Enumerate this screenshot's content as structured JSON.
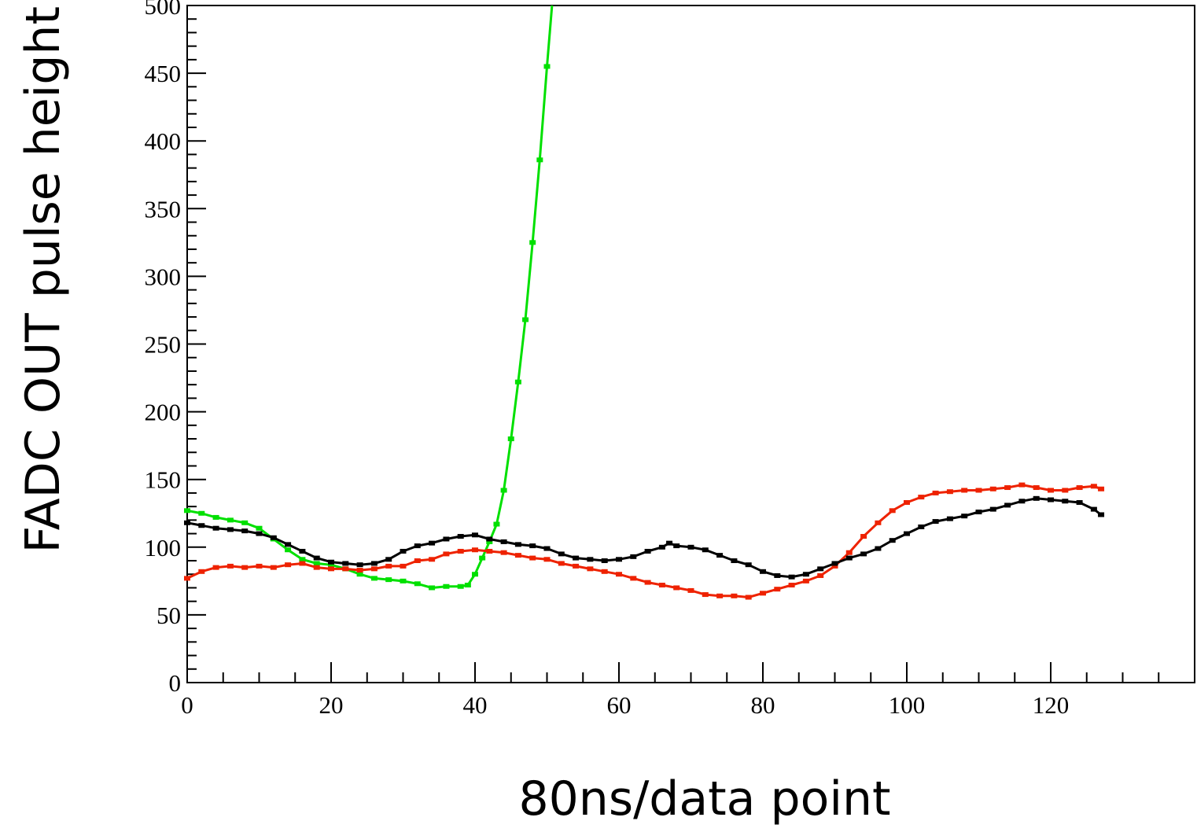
{
  "chart_data": {
    "type": "line",
    "title": "",
    "xlabel": "80ns/data point",
    "ylabel": "FADC OUT pulse height",
    "xlim": [
      0,
      140
    ],
    "ylim": [
      0,
      500
    ],
    "x_ticks": [
      0,
      20,
      40,
      60,
      80,
      100,
      120
    ],
    "y_ticks": [
      0,
      50,
      100,
      150,
      200,
      250,
      300,
      350,
      400,
      450,
      500
    ],
    "grid": false,
    "legend": "none",
    "series": [
      {
        "color": "#00e000",
        "x": [
          0,
          2,
          4,
          6,
          8,
          10,
          12,
          14,
          16,
          18,
          20,
          22,
          24,
          26,
          28,
          30,
          32,
          34,
          36,
          38,
          39,
          40,
          41,
          42,
          43,
          44,
          45,
          46,
          47,
          48,
          49,
          50,
          50.7
        ],
        "y": [
          127,
          125,
          122,
          120,
          118,
          114,
          106,
          98,
          91,
          88,
          87,
          84,
          80,
          77,
          76,
          75,
          73,
          70,
          71,
          71,
          72,
          80,
          92,
          104,
          117,
          142,
          180,
          222,
          268,
          325,
          386,
          455,
          500
        ]
      },
      {
        "color": "#ee2200",
        "x": [
          0,
          2,
          4,
          6,
          8,
          10,
          12,
          14,
          16,
          18,
          20,
          22,
          24,
          26,
          28,
          30,
          32,
          34,
          36,
          38,
          40,
          42,
          44,
          46,
          48,
          50,
          52,
          54,
          56,
          58,
          60,
          62,
          64,
          66,
          68,
          70,
          72,
          74,
          76,
          78,
          80,
          82,
          84,
          86,
          88,
          90,
          92,
          94,
          96,
          98,
          100,
          102,
          104,
          106,
          108,
          110,
          112,
          114,
          116,
          118,
          120,
          122,
          124,
          126,
          127
        ],
        "y": [
          77,
          82,
          85,
          86,
          85,
          86,
          85,
          87,
          88,
          85,
          84,
          84,
          83,
          84,
          86,
          86,
          90,
          91,
          95,
          97,
          98,
          97,
          96,
          94,
          92,
          91,
          88,
          86,
          84,
          82,
          80,
          77,
          74,
          72,
          70,
          68,
          65,
          64,
          64,
          63,
          66,
          69,
          72,
          75,
          79,
          86,
          96,
          108,
          118,
          127,
          133,
          137,
          140,
          141,
          142,
          142,
          143,
          144,
          146,
          144,
          142,
          142,
          144,
          145,
          143
        ]
      },
      {
        "color": "#000000",
        "x": [
          0,
          2,
          4,
          6,
          8,
          10,
          12,
          14,
          16,
          18,
          20,
          22,
          24,
          26,
          28,
          30,
          32,
          34,
          36,
          38,
          40,
          42,
          44,
          46,
          48,
          50,
          52,
          54,
          56,
          58,
          60,
          62,
          64,
          66,
          67,
          68,
          70,
          72,
          74,
          76,
          78,
          80,
          82,
          84,
          86,
          88,
          90,
          92,
          94,
          96,
          98,
          100,
          102,
          104,
          106,
          108,
          110,
          112,
          114,
          116,
          118,
          120,
          122,
          124,
          126,
          127
        ],
        "y": [
          118,
          116,
          114,
          113,
          112,
          110,
          107,
          102,
          97,
          92,
          89,
          88,
          87,
          88,
          91,
          97,
          101,
          103,
          106,
          108,
          109,
          106,
          104,
          102,
          101,
          99,
          95,
          92,
          91,
          90,
          91,
          93,
          97,
          100,
          103,
          101,
          100,
          98,
          94,
          90,
          87,
          82,
          79,
          78,
          80,
          84,
          88,
          92,
          95,
          99,
          105,
          110,
          115,
          119,
          121,
          123,
          126,
          128,
          131,
          134,
          136,
          135,
          134,
          133,
          128,
          124
        ]
      }
    ]
  }
}
